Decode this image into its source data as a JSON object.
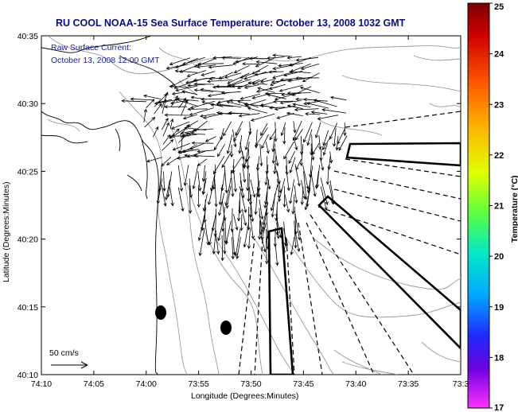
{
  "title": "RU COOL  NOAA-15  Sea Surface Temperature:  October 13, 2008 1032 GMT",
  "legend": {
    "line1": "Raw Surface Current:",
    "line2": "October 13, 2008 12:00 GMT"
  },
  "scale_label": "50 cm/s",
  "colorbar": {
    "label": "Temperature (°C)",
    "min": 17,
    "max": 25,
    "ticks": [
      "25",
      "24",
      "23",
      "22",
      "21",
      "20",
      "19",
      "18",
      "17"
    ]
  },
  "axes": {
    "xlabel": "Longitude (Degrees:Minutes)",
    "ylabel": "Latitude (Degrees:Minutes)",
    "xticks": [
      "74:10",
      "74:05",
      "74:00",
      "73:55",
      "73:50",
      "73:45",
      "73:40",
      "73:35",
      "73:3"
    ],
    "yticks": [
      "40:35",
      "40:30",
      "40:25",
      "40:20",
      "40:15",
      "40:10"
    ]
  },
  "colors": {
    "title": "#0b0b8a",
    "legend": "#1a1aa0",
    "contour": "#9a9a9a",
    "coast": "#000000"
  }
}
